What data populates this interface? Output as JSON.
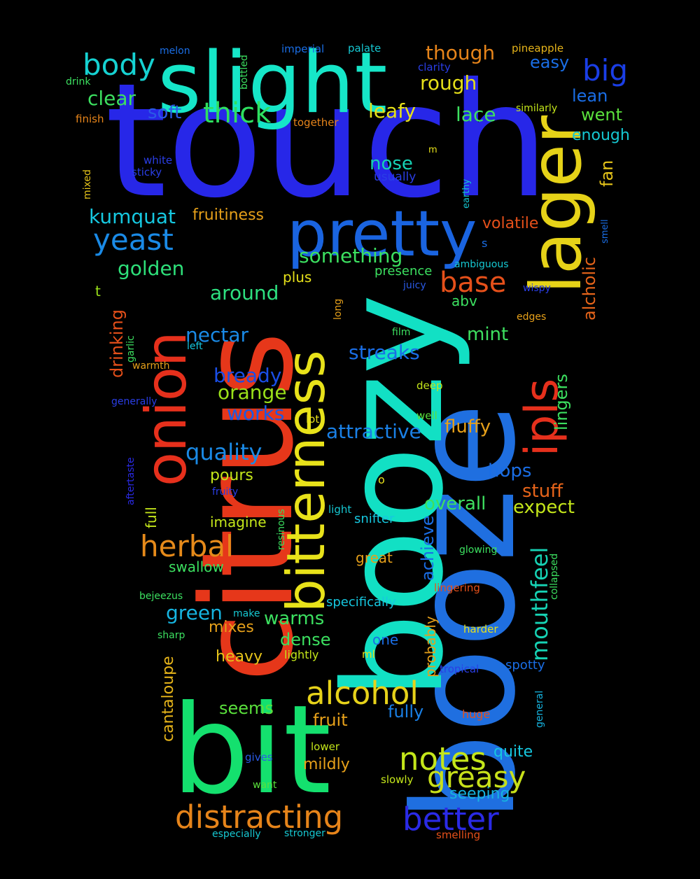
{
  "words": [
    {
      "id": "touch",
      "text": "touch",
      "color": "#2727e8"
    },
    {
      "id": "booze",
      "text": "booze",
      "color": "#1f6fe0"
    },
    {
      "id": "boozy",
      "text": "boozy",
      "color": "#12e0c4"
    },
    {
      "id": "citrus",
      "text": "citrus",
      "color": "#e6371a"
    },
    {
      "id": "bit",
      "text": "bit",
      "color": "#14e06e"
    },
    {
      "id": "slight",
      "text": "slight",
      "color": "#16e6c8"
    },
    {
      "id": "lager",
      "text": "lager",
      "color": "#e6d218"
    },
    {
      "id": "pretty",
      "text": "pretty",
      "color": "#1a64e0"
    },
    {
      "id": "onion",
      "text": "onion",
      "color": "#e6301c"
    },
    {
      "id": "bitterness",
      "text": "bitterness",
      "color": "#e8e21a"
    },
    {
      "id": "ipls",
      "text": "ipls",
      "color": "#e6301c"
    },
    {
      "id": "distracting",
      "text": "distracting",
      "color": "#e6841a"
    },
    {
      "id": "better",
      "text": "better",
      "color": "#2a2ae6"
    },
    {
      "id": "alcohol",
      "text": "alcohol",
      "color": "#e6d21a"
    },
    {
      "id": "notes",
      "text": "notes",
      "color": "#c4e61a"
    },
    {
      "id": "greasy",
      "text": "greasy",
      "color": "#c8e01a"
    },
    {
      "id": "herbal",
      "text": "herbal",
      "color": "#e68a1a"
    },
    {
      "id": "yeast",
      "text": "yeast",
      "color": "#1a8ae6"
    },
    {
      "id": "big",
      "text": "big",
      "color": "#1a3ee6"
    },
    {
      "id": "body",
      "text": "body",
      "color": "#16d2d2"
    },
    {
      "id": "thick",
      "text": "thick",
      "color": "#2ee060"
    },
    {
      "id": "base",
      "text": "base",
      "color": "#e6501a"
    },
    {
      "id": "mouthfeel",
      "text": "mouthfeel",
      "color": "#16d2b4"
    },
    {
      "id": "quality",
      "text": "quality",
      "color": "#1a8ae6"
    },
    {
      "id": "green",
      "text": "green",
      "color": "#16b4e0"
    },
    {
      "id": "something",
      "text": "something",
      "color": "#3ce060"
    },
    {
      "id": "golden",
      "text": "golden",
      "color": "#2ee07a"
    },
    {
      "id": "kumquat",
      "text": "kumquat",
      "color": "#16c8e0"
    },
    {
      "id": "around",
      "text": "around",
      "color": "#2ee080"
    },
    {
      "id": "nectar",
      "text": "nectar",
      "color": "#1a8ae6"
    },
    {
      "id": "bready",
      "text": "bready",
      "color": "#1a4ee6"
    },
    {
      "id": "orange",
      "text": "orange",
      "color": "#9ae01a"
    },
    {
      "id": "works",
      "text": "works",
      "color": "#1a5ae6"
    },
    {
      "id": "streaks",
      "text": "streaks",
      "color": "#1a6ee6"
    },
    {
      "id": "attractive",
      "text": "attractive",
      "color": "#1a80e6"
    },
    {
      "id": "leafy",
      "text": "leafy",
      "color": "#e6e01a"
    },
    {
      "id": "lace",
      "text": "lace",
      "color": "#3ee060"
    },
    {
      "id": "rough",
      "text": "rough",
      "color": "#e6e01a"
    },
    {
      "id": "though",
      "text": "though",
      "color": "#e6841a"
    },
    {
      "id": "clear",
      "text": "clear",
      "color": "#3ce060"
    },
    {
      "id": "soft",
      "text": "soft",
      "color": "#2a5ae6"
    },
    {
      "id": "nose",
      "text": "nose",
      "color": "#16d2b4"
    },
    {
      "id": "mint",
      "text": "mint",
      "color": "#3ee060"
    },
    {
      "id": "fluffy",
      "text": "fluffy",
      "color": "#e6a01a"
    },
    {
      "id": "hops",
      "text": "hops",
      "color": "#1a6ee6"
    },
    {
      "id": "stuff",
      "text": "stuff",
      "color": "#e6641a"
    },
    {
      "id": "overall",
      "text": "overall",
      "color": "#3ee060"
    },
    {
      "id": "expect",
      "text": "expect",
      "color": "#c4e61a"
    },
    {
      "id": "lingers",
      "text": "lingers",
      "color": "#3ce060"
    },
    {
      "id": "alcholic",
      "text": "alcholic",
      "color": "#e6641a"
    },
    {
      "id": "fan",
      "text": "fan",
      "color": "#e6c41a"
    },
    {
      "id": "easy",
      "text": "easy",
      "color": "#1a6ee6"
    },
    {
      "id": "lean",
      "text": "lean",
      "color": "#1a6ee6"
    },
    {
      "id": "went",
      "text": "went",
      "color": "#5ae03c"
    },
    {
      "id": "enough",
      "text": "enough",
      "color": "#16c8d2"
    },
    {
      "id": "volatile",
      "text": "volatile",
      "color": "#e6501a"
    },
    {
      "id": "fruitiness",
      "text": "fruitiness",
      "color": "#e6a01a"
    },
    {
      "id": "drinking",
      "text": "drinking",
      "color": "#e6501a"
    },
    {
      "id": "seems",
      "text": "seems",
      "color": "#5ae03c"
    },
    {
      "id": "fruit",
      "text": "fruit",
      "color": "#e6a01a"
    },
    {
      "id": "fully",
      "text": "fully",
      "color": "#1a80e6"
    },
    {
      "id": "quite",
      "text": "quite",
      "color": "#16c8e0"
    },
    {
      "id": "seeping",
      "text": "seeping",
      "color": "#16b4e0"
    },
    {
      "id": "mildly",
      "text": "mildly",
      "color": "#e6a01a"
    },
    {
      "id": "warms",
      "text": "warms",
      "color": "#3ce060"
    },
    {
      "id": "dense",
      "text": "dense",
      "color": "#3ce060"
    },
    {
      "id": "mixes",
      "text": "mixes",
      "color": "#e6a01a"
    },
    {
      "id": "heavy",
      "text": "heavy",
      "color": "#e6c41a"
    },
    {
      "id": "cantaloupe",
      "text": "cantaloupe",
      "color": "#e6b41a"
    },
    {
      "id": "pours",
      "text": "pours",
      "color": "#c4e61a"
    },
    {
      "id": "imagine",
      "text": "imagine",
      "color": "#c4e61a"
    },
    {
      "id": "swallow",
      "text": "swallow",
      "color": "#3ce060"
    },
    {
      "id": "full",
      "text": "full",
      "color": "#c4e61a"
    },
    {
      "id": "achieve",
      "text": "achieve",
      "color": "#1a6ee6"
    },
    {
      "id": "probably",
      "text": "probably",
      "color": "#e6a01a"
    },
    {
      "id": "snifter",
      "text": "snifter",
      "color": "#16c8e0"
    },
    {
      "id": "great",
      "text": "great",
      "color": "#e6a01a"
    },
    {
      "id": "specifically",
      "text": "specifically",
      "color": "#16c8e0"
    },
    {
      "id": "one",
      "text": "one",
      "color": "#1a6ee6"
    },
    {
      "id": "spotty",
      "text": "spotty",
      "color": "#1a6ee6"
    },
    {
      "id": "abv",
      "text": "abv",
      "color": "#3ce060"
    },
    {
      "id": "presence",
      "text": "presence",
      "color": "#3ce060"
    },
    {
      "id": "plus",
      "text": "plus",
      "color": "#e6e01a"
    },
    {
      "id": "t",
      "text": "t",
      "color": "#9ae01a"
    },
    {
      "id": "o",
      "text": "o",
      "color": "#e6e01a"
    },
    {
      "id": "s",
      "text": "s",
      "color": "#1a6ee6"
    },
    {
      "id": "m",
      "text": "m",
      "color": "#e6e01a"
    },
    {
      "id": "ml",
      "text": "ml",
      "color": "#e6e01a"
    },
    {
      "id": "lot",
      "text": "lot",
      "color": "#e6e01a"
    },
    {
      "id": "melon",
      "text": "melon",
      "color": "#1a6ee6"
    },
    {
      "id": "imperial",
      "text": "imperial",
      "color": "#1a6ee6"
    },
    {
      "id": "palate",
      "text": "palate",
      "color": "#16c8d2"
    },
    {
      "id": "pineapple",
      "text": "pineapple",
      "color": "#e6b41a"
    },
    {
      "id": "clarity",
      "text": "clarity",
      "color": "#2a3ee6"
    },
    {
      "id": "drink",
      "text": "drink",
      "color": "#3ce060"
    },
    {
      "id": "bottled",
      "text": "bottled",
      "color": "#3ce060"
    },
    {
      "id": "finish",
      "text": "finish",
      "color": "#e6841a"
    },
    {
      "id": "together",
      "text": "together",
      "color": "#e6841a"
    },
    {
      "id": "similarly",
      "text": "similarly",
      "color": "#c4e61a"
    },
    {
      "id": "white",
      "text": "white",
      "color": "#2a3ee6"
    },
    {
      "id": "sticky",
      "text": "sticky",
      "color": "#2a3ee6"
    },
    {
      "id": "mixed",
      "text": "mixed",
      "color": "#e6c41a"
    },
    {
      "id": "usually",
      "text": "usually",
      "color": "#2a3ee6"
    },
    {
      "id": "earthy",
      "text": "earthy",
      "color": "#16c8d2"
    },
    {
      "id": "smell",
      "text": "smell",
      "color": "#1a6ee6"
    },
    {
      "id": "ambiguous",
      "text": "ambiguous",
      "color": "#16c8d2"
    },
    {
      "id": "juicy",
      "text": "juicy",
      "color": "#2a5ae6"
    },
    {
      "id": "wispy",
      "text": "wispy",
      "color": "#2a3ee6"
    },
    {
      "id": "long",
      "text": "long",
      "color": "#e6a01a"
    },
    {
      "id": "edges",
      "text": "edges",
      "color": "#e6a01a"
    },
    {
      "id": "film",
      "text": "film",
      "color": "#3ce060"
    },
    {
      "id": "left",
      "text": "left",
      "color": "#16c8e0"
    },
    {
      "id": "garlic",
      "text": "garlic",
      "color": "#3ce060"
    },
    {
      "id": "warmth",
      "text": "warmth",
      "color": "#e6a01a"
    },
    {
      "id": "generally",
      "text": "generally",
      "color": "#2a3ee6"
    },
    {
      "id": "deep",
      "text": "deep",
      "color": "#c4e61a"
    },
    {
      "id": "well",
      "text": "well",
      "color": "#5ae03c"
    },
    {
      "id": "aftertaste",
      "text": "aftertaste",
      "color": "#2a2ae6"
    },
    {
      "id": "fruity",
      "text": "fruity",
      "color": "#2a3ee6"
    },
    {
      "id": "resinous",
      "text": "resinous",
      "color": "#3ce060"
    },
    {
      "id": "light",
      "text": "light",
      "color": "#16c8d2"
    },
    {
      "id": "glowing",
      "text": "glowing",
      "color": "#3ce060"
    },
    {
      "id": "collapsed",
      "text": "collapsed",
      "color": "#3ce060"
    },
    {
      "id": "lingering",
      "text": "lingering",
      "color": "#e6501a"
    },
    {
      "id": "bejeezus",
      "text": "bejeezus",
      "color": "#3ce060"
    },
    {
      "id": "make",
      "text": "make",
      "color": "#16c8d2"
    },
    {
      "id": "sharp",
      "text": "sharp",
      "color": "#3ce060"
    },
    {
      "id": "harder",
      "text": "harder",
      "color": "#e6e01a"
    },
    {
      "id": "lightly",
      "text": "lightly",
      "color": "#c4e61a"
    },
    {
      "id": "tropical",
      "text": "tropical",
      "color": "#2a3ee6"
    },
    {
      "id": "huge",
      "text": "huge",
      "color": "#e6501a"
    },
    {
      "id": "general",
      "text": "general",
      "color": "#16b4e0"
    },
    {
      "id": "lower",
      "text": "lower",
      "color": "#c4e61a"
    },
    {
      "id": "gives",
      "text": "gives",
      "color": "#2a5ae6"
    },
    {
      "id": "want",
      "text": "want",
      "color": "#5ae03c"
    },
    {
      "id": "slowly",
      "text": "slowly",
      "color": "#c4e61a"
    },
    {
      "id": "especially",
      "text": "especially",
      "color": "#16c8d2"
    },
    {
      "id": "stronger",
      "text": "stronger",
      "color": "#16c8d2"
    },
    {
      "id": "smelling",
      "text": "smelling",
      "color": "#e6501a"
    }
  ]
}
